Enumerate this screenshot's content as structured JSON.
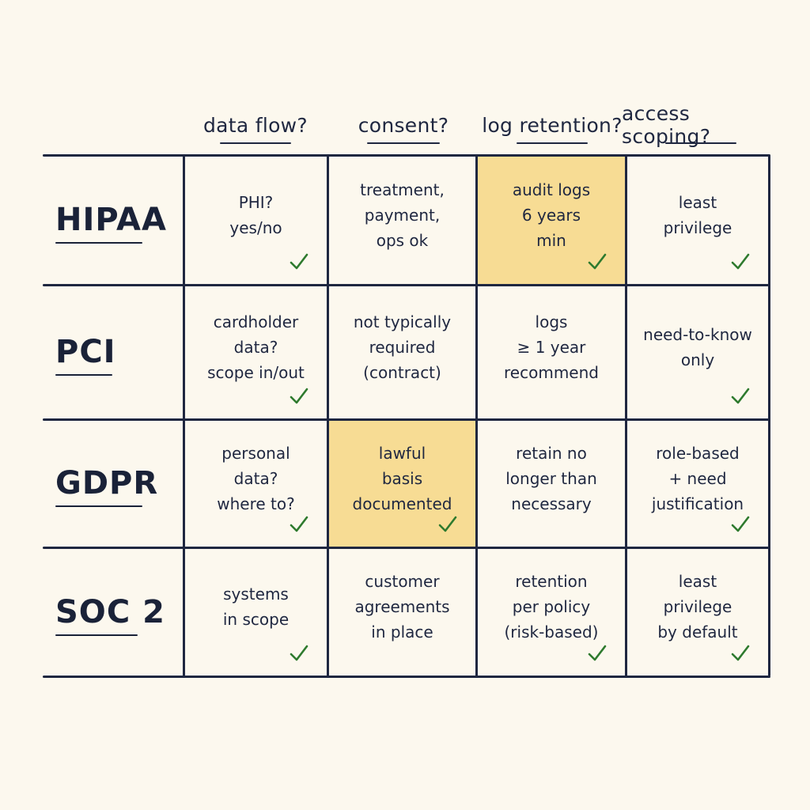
{
  "columns": [
    {
      "label": "data flow?"
    },
    {
      "label": "consent?"
    },
    {
      "label": "log retention?"
    },
    {
      "label": "access scoping?"
    }
  ],
  "rows": [
    {
      "label": "HIPAA",
      "cells": [
        {
          "text": "PHI?\nyes/no",
          "highlight": false,
          "checked": true
        },
        {
          "text": "treatment,\npayment,\nops ok",
          "highlight": false,
          "checked": false
        },
        {
          "text": "audit logs\n6 years\nmin",
          "highlight": true,
          "checked": true
        },
        {
          "text": "least\nprivilege",
          "highlight": false,
          "checked": true
        }
      ]
    },
    {
      "label": "PCI",
      "cells": [
        {
          "text": "cardholder\ndata?\nscope in/out",
          "highlight": false,
          "checked": true
        },
        {
          "text": "not typically\nrequired\n(contract)",
          "highlight": false,
          "checked": false
        },
        {
          "text": "logs\n≥ 1 year\nrecommend",
          "highlight": false,
          "checked": false
        },
        {
          "text": "need-to-know\nonly",
          "highlight": false,
          "checked": true
        }
      ]
    },
    {
      "label": "GDPR",
      "cells": [
        {
          "text": "personal\ndata?\nwhere to?",
          "highlight": false,
          "checked": true
        },
        {
          "text": "lawful\nbasis\ndocumented",
          "highlight": true,
          "checked": true
        },
        {
          "text": "retain no\nlonger than\nnecessary",
          "highlight": false,
          "checked": false
        },
        {
          "text": "role-based\n+ need\njustification",
          "highlight": false,
          "checked": true
        }
      ]
    },
    {
      "label": "SOC 2",
      "cells": [
        {
          "text": "systems\nin scope",
          "highlight": false,
          "checked": true
        },
        {
          "text": "customer\nagreements\nin place",
          "highlight": false,
          "checked": false
        },
        {
          "text": "retention\nper policy\n(risk-based)",
          "highlight": false,
          "checked": true
        },
        {
          "text": "least\nprivilege\nby default",
          "highlight": false,
          "checked": true
        }
      ]
    }
  ],
  "colors": {
    "ink": "#1f2740",
    "highlight": "#f7dc94",
    "check": "#2e7a2e",
    "paper": "#fcf8ee"
  }
}
